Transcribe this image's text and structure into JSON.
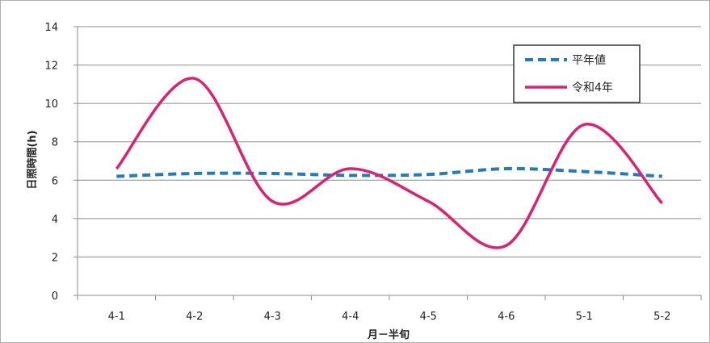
{
  "chart_data": {
    "type": "line",
    "title": "",
    "xlabel": "月－半旬",
    "ylabel": "日照時間(h)",
    "categories": [
      "4-1",
      "4-2",
      "4-3",
      "4-4",
      "4-5",
      "4-6",
      "5-1",
      "5-2"
    ],
    "ylim": [
      0,
      14
    ],
    "yticks": [
      0,
      2,
      4,
      6,
      8,
      10,
      12,
      14
    ],
    "grid": true,
    "legend_position": "top-right",
    "series": [
      {
        "name": "平年値",
        "values": [
          6.2,
          6.35,
          6.35,
          6.25,
          6.3,
          6.6,
          6.45,
          6.2
        ],
        "color": "#1f7cc0",
        "dash": "dashed"
      },
      {
        "name": "令和4年",
        "values": [
          6.6,
          11.3,
          4.9,
          6.6,
          4.9,
          2.6,
          8.9,
          4.8
        ],
        "color": "#e0206e",
        "dash": "solid"
      }
    ]
  }
}
